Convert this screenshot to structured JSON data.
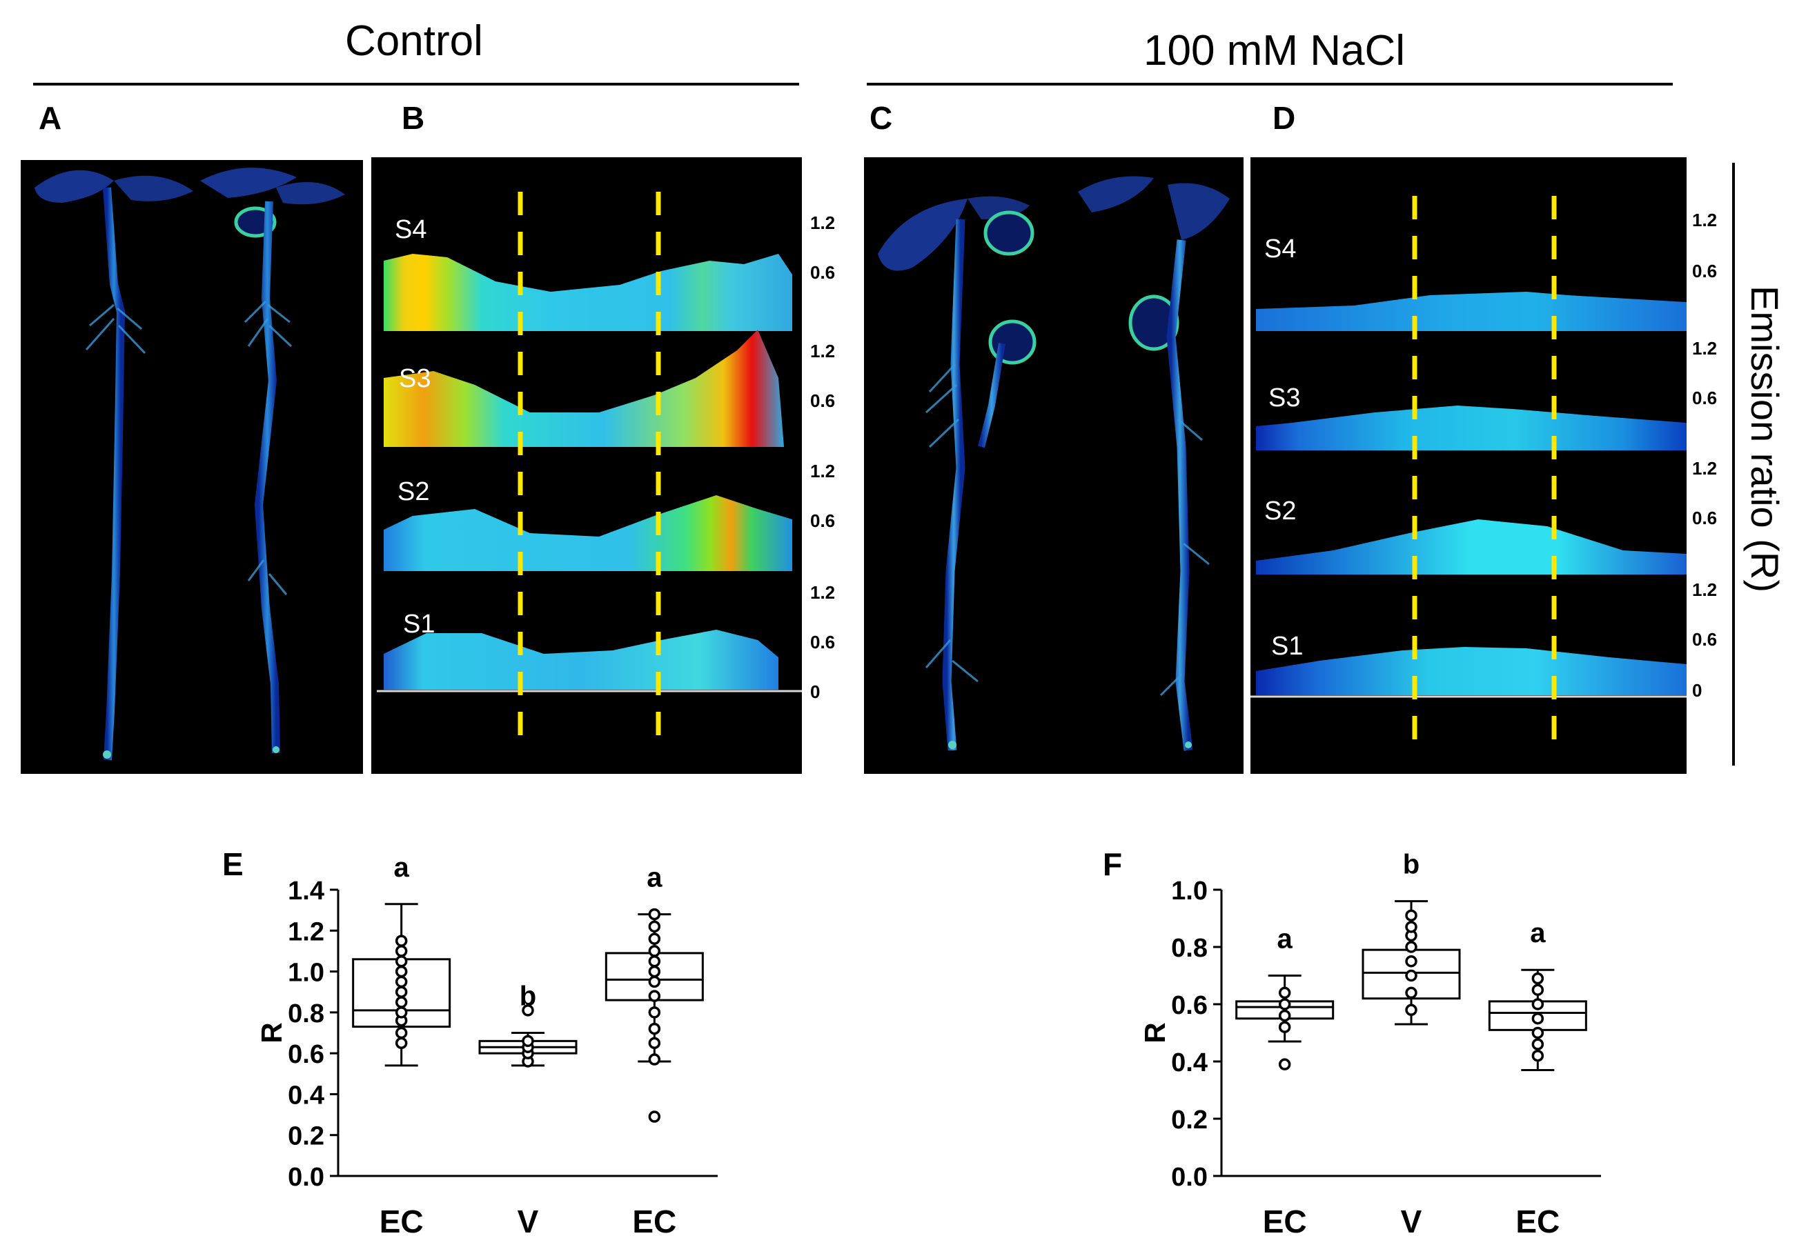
{
  "header": {
    "control": "Control",
    "nacl": "100 mM NaCl"
  },
  "panels": {
    "A": "A",
    "B": "B",
    "C": "C",
    "D": "D",
    "E": "E",
    "F": "F"
  },
  "profile_labels": {
    "s4": "S4",
    "s3": "S3",
    "s2": "S2",
    "s1": "S1"
  },
  "profile_ticks": {
    "t12": "1.2",
    "t06": "0.6",
    "t0": "0"
  },
  "emission_axis_label": "Emission ratio (R)",
  "colors": {
    "dashed": "#ffe800",
    "panel_bg": "#000000"
  },
  "chart_data": [
    {
      "type": "box",
      "panel": "E",
      "ylabel": "R",
      "ylim": [
        0.0,
        1.4
      ],
      "yticks": [
        "0.0",
        "0.2",
        "0.4",
        "0.6",
        "0.8",
        "1.0",
        "1.2",
        "1.4"
      ],
      "categories": [
        "EC",
        "V",
        "EC"
      ],
      "letters": [
        "a",
        "b",
        "a"
      ],
      "boxes": [
        {
          "min": 0.54,
          "q1": 0.73,
          "median": 0.81,
          "q3": 1.06,
          "max": 1.33,
          "points": [
            0.65,
            0.7,
            0.76,
            0.8,
            0.85,
            0.9,
            0.95,
            1.0,
            1.05,
            1.1,
            1.15
          ]
        },
        {
          "min": 0.54,
          "q1": 0.6,
          "median": 0.63,
          "q3": 0.66,
          "max": 0.7,
          "points": [
            0.56,
            0.6,
            0.63,
            0.66,
            0.81
          ]
        },
        {
          "min": 0.56,
          "q1": 0.86,
          "median": 0.96,
          "q3": 1.09,
          "max": 1.28,
          "points": [
            0.29,
            0.57,
            0.65,
            0.72,
            0.8,
            0.88,
            0.95,
            1.0,
            1.05,
            1.1,
            1.16,
            1.22,
            1.28
          ]
        }
      ]
    },
    {
      "type": "box",
      "panel": "F",
      "ylabel": "R",
      "ylim": [
        0.0,
        1.0
      ],
      "yticks": [
        "0.0",
        "0.2",
        "0.4",
        "0.6",
        "0.8",
        "1.0"
      ],
      "categories": [
        "EC",
        "V",
        "EC"
      ],
      "letters": [
        "a",
        "b",
        "a"
      ],
      "boxes": [
        {
          "min": 0.47,
          "q1": 0.55,
          "median": 0.59,
          "q3": 0.61,
          "max": 0.7,
          "points": [
            0.39,
            0.52,
            0.56,
            0.6,
            0.64
          ]
        },
        {
          "min": 0.53,
          "q1": 0.62,
          "median": 0.71,
          "q3": 0.79,
          "max": 0.96,
          "points": [
            0.58,
            0.64,
            0.7,
            0.75,
            0.8,
            0.84,
            0.87,
            0.91
          ]
        },
        {
          "min": 0.37,
          "q1": 0.51,
          "median": 0.57,
          "q3": 0.61,
          "max": 0.72,
          "points": [
            0.42,
            0.46,
            0.5,
            0.55,
            0.6,
            0.65,
            0.69
          ]
        }
      ]
    }
  ]
}
